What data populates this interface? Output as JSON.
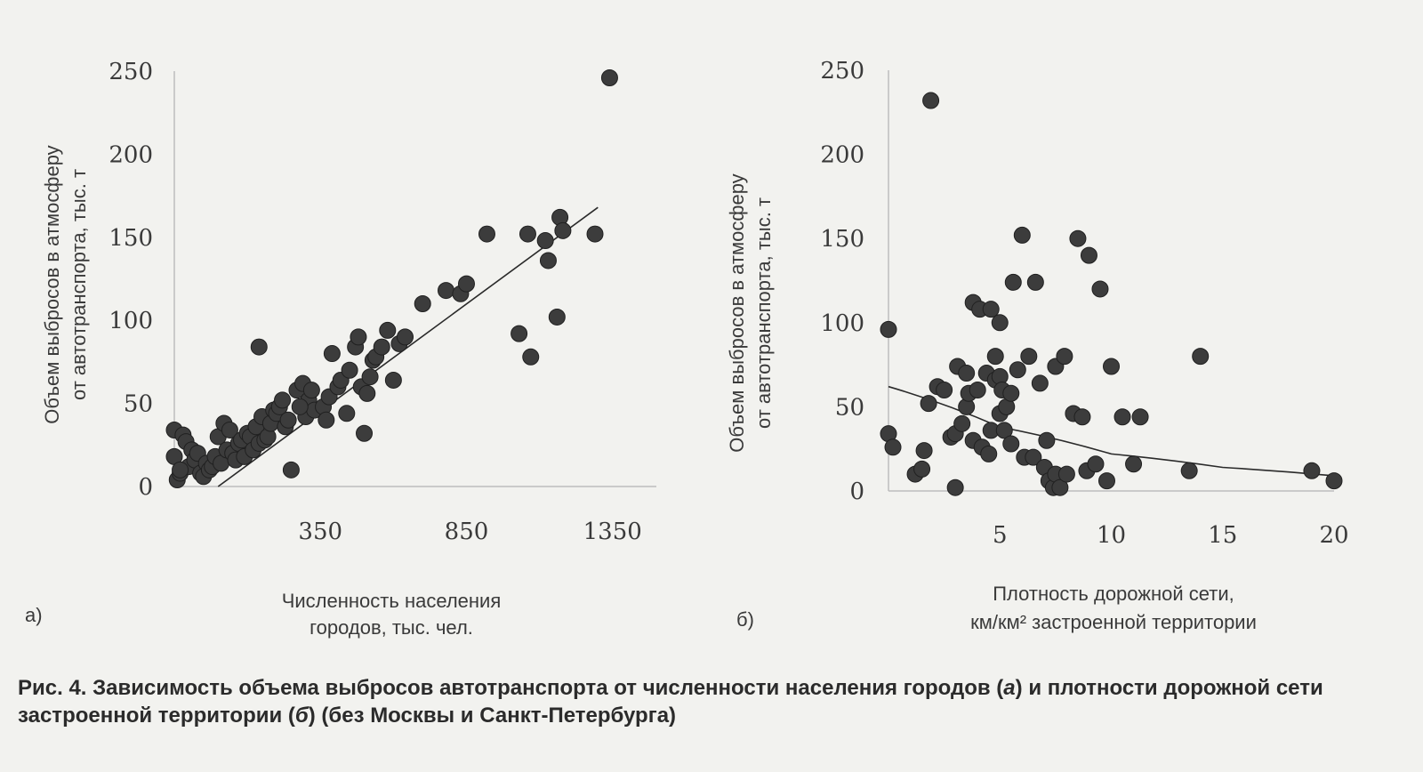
{
  "caption": {
    "prefix": "Рис. 4. Зависимость объема выбросов автотранспорта от численности населения городов (",
    "a": "а",
    "middle": ") и плотности дорожной сети застроенной территории (",
    "b": "б",
    "suffix": ") (без Москвы и Санкт-Петербурга)"
  },
  "colors": {
    "points": "#3c3c3c",
    "axis": "#bdbdbd",
    "trend": "#2a2a2a",
    "background": "#f2f2ef"
  },
  "chart_data": [
    {
      "type": "scatter",
      "panel_label": "а)",
      "xlabel": [
        "Численность населения",
        "городов, тыс. чел."
      ],
      "ylabel": [
        "Объем выбросов в атмосферу",
        "от автотранспорта, тыс. т"
      ],
      "xlim": [
        -150,
        1500
      ],
      "ylim": [
        0,
        250
      ],
      "x_ticks": [
        350,
        850,
        1350
      ],
      "y_ticks": [
        0,
        50,
        100,
        150,
        200,
        250
      ],
      "grid": false,
      "trendline": {
        "type": "linear",
        "points": [
          [
            0,
            0
          ],
          [
            1300,
            168
          ]
        ]
      },
      "x": [
        -150,
        -150,
        -140,
        -130,
        -120,
        -110,
        -100,
        -90,
        -80,
        -70,
        -60,
        -50,
        -40,
        -30,
        -20,
        -10,
        0,
        10,
        20,
        30,
        40,
        50,
        60,
        70,
        80,
        90,
        100,
        110,
        120,
        130,
        140,
        150,
        160,
        170,
        180,
        190,
        200,
        210,
        220,
        230,
        240,
        250,
        270,
        290,
        300,
        310,
        320,
        330,
        360,
        370,
        380,
        390,
        410,
        420,
        440,
        450,
        470,
        480,
        490,
        500,
        510,
        520,
        530,
        540,
        560,
        580,
        600,
        620,
        640,
        700,
        780,
        830,
        850,
        920,
        1030,
        1060,
        1070,
        1120,
        1130,
        1160,
        1170,
        1180,
        1290,
        1340,
        -130,
        140,
        280
      ],
      "y": [
        34,
        18,
        4,
        8,
        31,
        27,
        12,
        22,
        16,
        20,
        8,
        6,
        14,
        10,
        12,
        18,
        30,
        14,
        38,
        22,
        34,
        20,
        16,
        26,
        28,
        18,
        32,
        30,
        22,
        36,
        26,
        42,
        28,
        30,
        38,
        46,
        44,
        48,
        52,
        36,
        40,
        10,
        58,
        62,
        42,
        52,
        58,
        46,
        48,
        40,
        54,
        80,
        60,
        64,
        44,
        70,
        84,
        90,
        60,
        32,
        56,
        66,
        76,
        78,
        84,
        94,
        64,
        86,
        90,
        110,
        118,
        116,
        122,
        152,
        92,
        152,
        78,
        148,
        136,
        102,
        162,
        154,
        152,
        246,
        10,
        84,
        48
      ]
    },
    {
      "type": "scatter",
      "panel_label": "б)",
      "xlabel": [
        "Плотность дорожной сети,",
        "км/км² застроенной территории"
      ],
      "ylabel": [
        "Объем выбросов в атмосферу",
        "от автотранспорта, тыс. т"
      ],
      "xlim": [
        0,
        20
      ],
      "ylim": [
        0,
        250
      ],
      "x_ticks": [
        5,
        10,
        15,
        20
      ],
      "y_ticks": [
        0,
        50,
        100,
        150,
        200,
        250
      ],
      "grid": false,
      "trendline": {
        "type": "exponential",
        "points": [
          [
            0,
            62
          ],
          [
            5,
            38
          ],
          [
            10,
            22
          ],
          [
            15,
            14
          ],
          [
            20,
            9
          ]
        ]
      },
      "x": [
        0,
        0,
        0.2,
        1.2,
        1.5,
        1.6,
        1.8,
        1.9,
        2.2,
        2.5,
        2.8,
        3.0,
        3.0,
        3.1,
        3.3,
        3.5,
        3.5,
        3.6,
        3.8,
        3.8,
        4.0,
        4.1,
        4.2,
        4.4,
        4.5,
        4.6,
        4.6,
        4.8,
        4.8,
        5.0,
        5.0,
        5.0,
        5.1,
        5.2,
        5.3,
        5.5,
        5.5,
        5.6,
        5.8,
        6.0,
        6.1,
        6.3,
        6.5,
        6.6,
        6.8,
        7.0,
        7.1,
        7.2,
        7.4,
        7.5,
        7.5,
        7.7,
        7.9,
        8.0,
        8.3,
        8.5,
        8.7,
        8.9,
        9.0,
        9.3,
        9.5,
        9.8,
        10.0,
        10.5,
        11.0,
        11.3,
        13.5,
        14.0,
        19.0,
        20.0
      ],
      "y": [
        96,
        34,
        26,
        10,
        13,
        24,
        52,
        232,
        62,
        60,
        32,
        34,
        2,
        74,
        40,
        70,
        50,
        58,
        30,
        112,
        60,
        108,
        26,
        70,
        22,
        36,
        108,
        66,
        80,
        68,
        100,
        46,
        60,
        36,
        50,
        58,
        28,
        124,
        72,
        152,
        20,
        80,
        20,
        124,
        64,
        14,
        30,
        6,
        2,
        10,
        74,
        2,
        80,
        10,
        46,
        150,
        44,
        12,
        140,
        16,
        120,
        6,
        74,
        44,
        16,
        44,
        12,
        80,
        12,
        6
      ]
    }
  ]
}
